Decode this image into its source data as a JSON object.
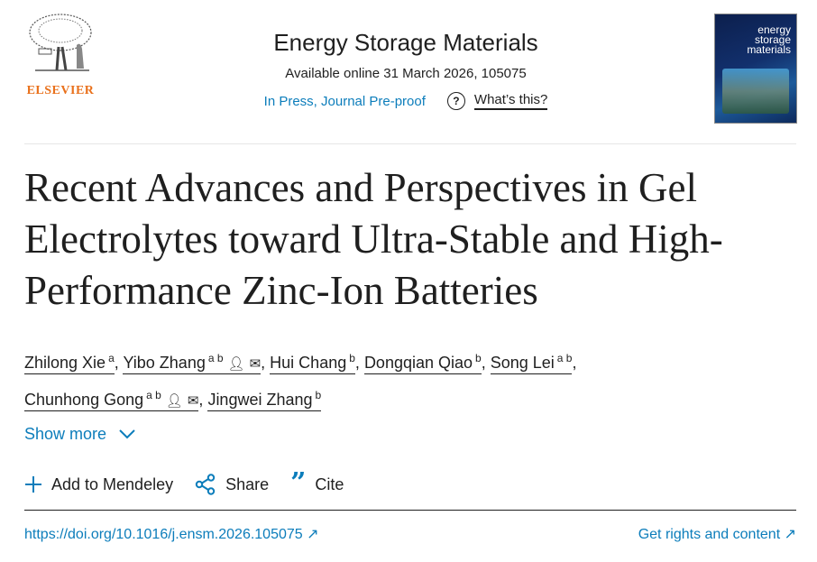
{
  "publisher": {
    "name": "ELSEVIER"
  },
  "journal": {
    "name": "Energy Storage Materials",
    "available": "Available online 31 March 2026, 105075",
    "status": "In Press, Journal Pre-proof",
    "whats_this": "What’s this?",
    "cover_title": "energy storage materials"
  },
  "article": {
    "title": "Recent Advances and Perspectives in Gel Electrolytes toward Ultra-Stable and High-Performance Zinc-Ion Batteries"
  },
  "authors": [
    {
      "name": "Zhilong Xie",
      "aff": "a"
    },
    {
      "name": "Yibo Zhang",
      "aff": "a b"
    },
    {
      "name": "Hui Chang",
      "aff": "b"
    },
    {
      "name": "Dongqian Qiao",
      "aff": "b"
    },
    {
      "name": "Song Lei",
      "aff": "a b"
    },
    {
      "name": "Chunhong Gong",
      "aff": "a b"
    },
    {
      "name": "Jingwei Zhang",
      "aff": "b"
    }
  ],
  "show_more": "Show more",
  "actions": {
    "mendeley": "Add to Mendeley",
    "share": "Share",
    "cite": "Cite"
  },
  "links": {
    "doi": "https://doi.org/10.1016/j.ensm.2026.105075",
    "rights": "Get rights and content"
  },
  "colors": {
    "accent": "#0c7dbb",
    "brand": "#e9711c"
  }
}
